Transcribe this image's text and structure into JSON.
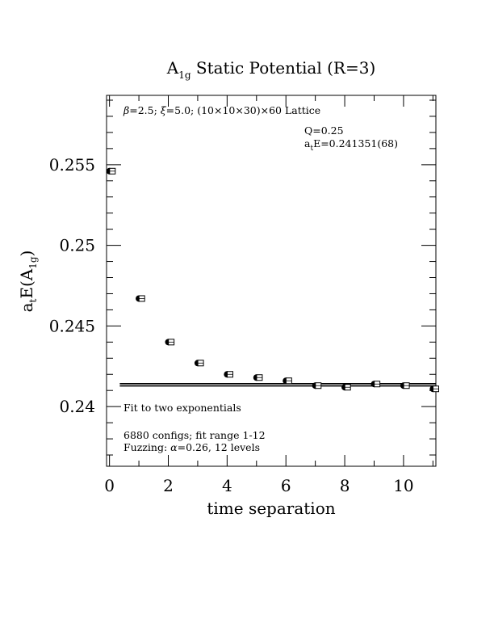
{
  "chart_data": {
    "type": "scatter",
    "title_main": "A",
    "title_sub": "1g",
    "title_rest": " Static Potential (R=3)",
    "xlabel": "time separation",
    "ylabel_main": "a",
    "ylabel_t": "t",
    "ylabel_mid": "E(A",
    "ylabel_sub": "1g",
    "ylabel_end": ")",
    "xlim": [
      -0.1,
      11.1
    ],
    "ylim": [
      0.2363,
      0.2593
    ],
    "x_ticks": [
      0,
      2,
      4,
      6,
      8,
      10
    ],
    "x_tick_labels": [
      "0",
      "2",
      "4",
      "6",
      "8",
      "10"
    ],
    "y_ticks": [
      0.24,
      0.245,
      0.25,
      0.255
    ],
    "y_tick_labels": [
      "0.24",
      "0.245",
      "0.25",
      "0.255"
    ],
    "lattice_prefix": "β",
    "lattice_mid": "=2.5; ",
    "lattice_xi": "ξ",
    "lattice_rest": "=5.0; (10×10×30)×60 Lattice",
    "q_text": "Q=0.25",
    "energy_main": "a",
    "energy_sub": "t",
    "energy_rest": "E=0.241351(68)",
    "fit_label": "Fit to two exponentials",
    "configs_text": "6880 configs; fit range 1-12",
    "fuzzing_prefix": "Fuzzing: ",
    "fuzzing_alpha": "α",
    "fuzzing_rest": "=0.26, 12 levels",
    "fit_value": 0.241351,
    "fit_error": 7e-05,
    "fit_xrange": [
      0.9,
      11.1
    ],
    "series": [
      {
        "marker": "filled-circle",
        "x": [
          0,
          1,
          2,
          3,
          4,
          5,
          6,
          7,
          8,
          9,
          10,
          11
        ],
        "values": [
          0.2546,
          0.2467,
          0.244,
          0.2427,
          0.242,
          0.2418,
          0.2416,
          0.2413,
          0.2412,
          0.2414,
          0.2413,
          0.2411
        ]
      },
      {
        "marker": "open-square",
        "x": [
          0.1,
          1.1,
          2.1,
          3.1,
          4.1,
          5.1,
          6.1,
          7.1,
          8.1,
          9.1,
          10.1,
          11.1
        ],
        "values": [
          0.2546,
          0.2467,
          0.244,
          0.2427,
          0.242,
          0.2418,
          0.2416,
          0.2413,
          0.2412,
          0.2414,
          0.2413,
          0.2411
        ]
      }
    ]
  }
}
